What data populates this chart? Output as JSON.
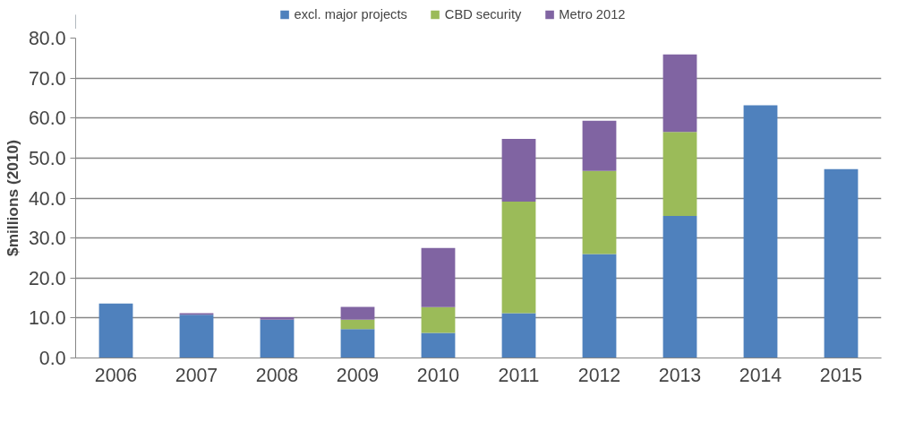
{
  "chart_data": {
    "type": "bar",
    "stacked": true,
    "ylabel": "$millions (2010)",
    "categories": [
      "2006",
      "2007",
      "2008",
      "2009",
      "2010",
      "2011",
      "2012",
      "2013",
      "2014",
      "2015"
    ],
    "series": [
      {
        "name": "excl. major projects",
        "color": "#4f81bd",
        "values": [
          13.6,
          10.8,
          9.6,
          7.2,
          6.3,
          11.2,
          26.0,
          35.5,
          63.2,
          47.2
        ]
      },
      {
        "name": "CBD security",
        "color": "#9bbb59",
        "values": [
          null,
          null,
          null,
          2.4,
          6.4,
          27.9,
          20.8,
          21.0,
          null,
          null
        ]
      },
      {
        "name": "Metro 2012",
        "color": "#8064a2",
        "values": [
          null,
          0.4,
          0.6,
          3.2,
          14.8,
          15.7,
          12.5,
          19.4,
          null,
          null
        ]
      }
    ],
    "ylim": [
      0,
      80
    ],
    "yticks": [
      {
        "value": 0,
        "label": "0.0"
      },
      {
        "value": 10,
        "label": "10.0"
      },
      {
        "value": 20,
        "label": "20.0"
      },
      {
        "value": 30,
        "label": "30.0"
      },
      {
        "value": 40,
        "label": "40.0"
      },
      {
        "value": 50,
        "label": "50.0"
      },
      {
        "value": 60,
        "label": "60.0"
      },
      {
        "value": 70,
        "label": "70.0"
      },
      {
        "value": 80,
        "label": "80.0"
      }
    ],
    "grid": "y",
    "legend": "top"
  }
}
